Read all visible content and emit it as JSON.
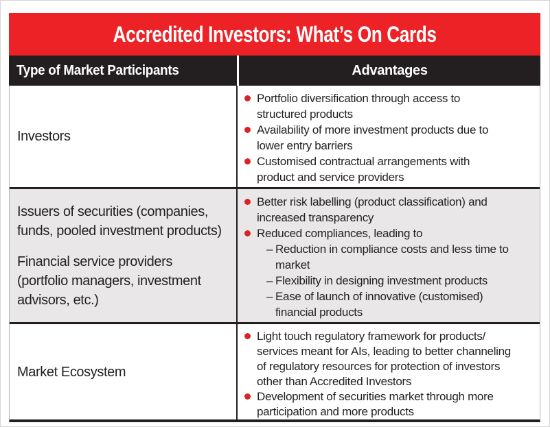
{
  "title": "Accredited Investors: What’s On Cards",
  "colors": {
    "header_red": "#ed2227",
    "bar_black": "#231f20",
    "bullet_red": "#d8232a",
    "alt_row_gray": "#e9e7e7",
    "text": "#231f20"
  },
  "columns": {
    "participants": "Type of Market Participants",
    "advantages": "Advantages"
  },
  "markers": {
    "sub_dash": "–"
  },
  "rows": [
    {
      "participants": [
        [
          "Investors"
        ]
      ],
      "advantages": [
        {
          "text": [
            "Portfolio diversification through access to",
            "structured products"
          ]
        },
        {
          "text": [
            "Availability of more investment products due to",
            "lower entry barriers"
          ]
        },
        {
          "text": [
            "Customised contractual arrangements with",
            "product and service providers"
          ]
        }
      ]
    },
    {
      "participants": [
        [
          "Issuers of securities (companies,",
          "funds, pooled investment products)"
        ],
        [
          "Financial service providers",
          "(portfolio managers, investment",
          "advisors, etc.)"
        ]
      ],
      "advantages": [
        {
          "text": [
            "Better risk labelling (product classification) and",
            "increased transparency"
          ]
        },
        {
          "text": [
            "Reduced compliances, leading to"
          ],
          "subs": [
            {
              "text": [
                "Reduction in compliance costs and less time to",
                "market"
              ]
            },
            {
              "text": [
                "Flexibility in designing investment products"
              ]
            },
            {
              "text": [
                "Ease of launch of innovative (customised)",
                "financial products"
              ]
            }
          ]
        }
      ]
    },
    {
      "participants": [
        [
          "Market Ecosystem"
        ]
      ],
      "advantages": [
        {
          "text": [
            "Light touch regulatory framework for products/",
            "services meant for AIs, leading to better channeling",
            "of regulatory resources for protection of investors",
            "other than Accredited Investors"
          ]
        },
        {
          "text": [
            "Development of securities market through more",
            "participation and more products"
          ]
        }
      ]
    }
  ]
}
